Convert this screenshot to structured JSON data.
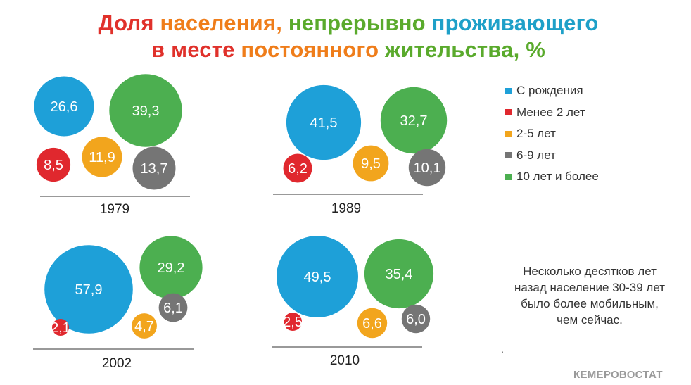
{
  "title": {
    "line1_parts": [
      {
        "text": "Доля ",
        "color": "#e0312b"
      },
      {
        "text": "населения, ",
        "color": "#ef7d1a"
      },
      {
        "text": "непрерывно ",
        "color": "#5aaa2c"
      },
      {
        "text": "проживающего",
        "color": "#1ea0c8"
      }
    ],
    "line2_parts": [
      {
        "text": "в месте ",
        "color": "#e0312b"
      },
      {
        "text": "постоянного ",
        "color": "#ef7d1a"
      },
      {
        "text": "жительства, %",
        "color": "#5aaa2c"
      }
    ]
  },
  "chart_data": {
    "type": "bubble",
    "categories": [
      "С рождения",
      "Менее 2 лет",
      "2-5 лет",
      "6-9 лет",
      "10 лет и более"
    ],
    "colors": [
      "#1ea0d8",
      "#e0282e",
      "#f2a51d",
      "#757575",
      "#4caf50"
    ],
    "panels": [
      {
        "year": "1979",
        "values": [
          "26,6",
          "8,5",
          "11,9",
          "13,7",
          "39,3"
        ]
      },
      {
        "year": "1989",
        "values": [
          "41,5",
          "6,2",
          "9,5",
          "10,1",
          "32,7"
        ]
      },
      {
        "year": "2002",
        "values": [
          "57,9",
          "2,1",
          "4,7",
          "6,1",
          "29,2"
        ]
      },
      {
        "year": "2010",
        "values": [
          "49,5",
          "2,5",
          "6,6",
          "6,0",
          "35,4"
        ]
      }
    ]
  },
  "legend": {
    "items": [
      {
        "label": "С рождения",
        "color": "#1ea0d8"
      },
      {
        "label": "Менее 2 лет",
        "color": "#e0282e"
      },
      {
        "label": "2-5 лет",
        "color": "#f2a51d"
      },
      {
        "label": "6-9 лет",
        "color": "#757575"
      },
      {
        "label": "10 лет и более",
        "color": "#4caf50"
      }
    ]
  },
  "note": {
    "lines": [
      "Несколько десятков лет",
      "назад население 30-39 лет",
      "было более мобильным,",
      "чем сейчас."
    ],
    "dot": "."
  },
  "watermark": "КЕМЕРОВОСТАТ"
}
